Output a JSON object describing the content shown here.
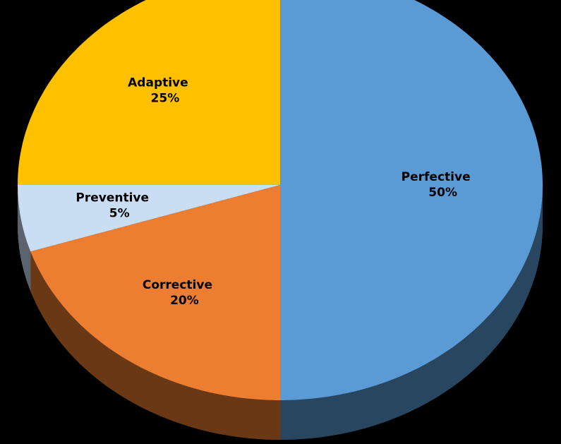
{
  "chart_data": {
    "type": "pie",
    "categories": [
      "Perfective",
      "Corrective",
      "Preventive",
      "Adaptive"
    ],
    "values": [
      50,
      20,
      5,
      25
    ],
    "value_labels": [
      "50%",
      "20%",
      "5%",
      "25%"
    ],
    "colors": [
      "#5b9bd5",
      "#ed7d31",
      "#c9def3",
      "#ffc000"
    ]
  }
}
